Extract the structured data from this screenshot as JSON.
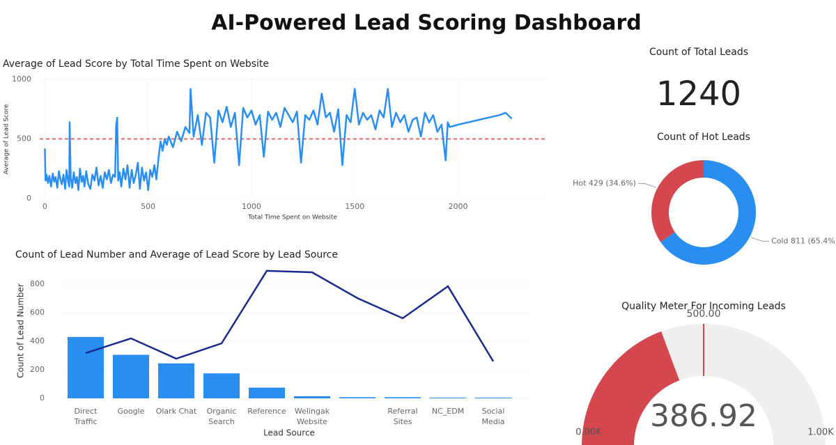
{
  "header": {
    "title": "AI-Powered Lead Scoring Dashboard"
  },
  "chart_data": [
    {
      "type": "line",
      "title": "Average of Lead Score by Total Time Spent on Website",
      "x_label": "Total Time Spent on Website",
      "y_label": "Average of Lead Score",
      "x": [
        0,
        3,
        8,
        15,
        22,
        30,
        38,
        45,
        52,
        60,
        68,
        75,
        82,
        90,
        98,
        105,
        112,
        118,
        120,
        125,
        132,
        140,
        148,
        155,
        162,
        170,
        178,
        185,
        192,
        200,
        210,
        220,
        230,
        240,
        250,
        260,
        270,
        280,
        290,
        300,
        310,
        320,
        330,
        340,
        345,
        350,
        355,
        362,
        370,
        380,
        390,
        400,
        410,
        420,
        430,
        440,
        450,
        460,
        470,
        480,
        490,
        500,
        510,
        520,
        530,
        540,
        550,
        560,
        570,
        580,
        590,
        600,
        620,
        640,
        660,
        680,
        700,
        705,
        720,
        740,
        760,
        780,
        800,
        820,
        840,
        860,
        880,
        900,
        920,
        940,
        960,
        980,
        1000,
        1020,
        1040,
        1060,
        1080,
        1100,
        1120,
        1140,
        1160,
        1180,
        1200,
        1220,
        1240,
        1260,
        1280,
        1300,
        1320,
        1340,
        1360,
        1380,
        1400,
        1420,
        1440,
        1460,
        1480,
        1500,
        1520,
        1540,
        1560,
        1580,
        1600,
        1620,
        1640,
        1660,
        1680,
        1700,
        1720,
        1740,
        1760,
        1780,
        1800,
        1820,
        1840,
        1860,
        1880,
        1900,
        1920,
        1940,
        1950,
        1960,
        2000,
        2050,
        2100,
        2150,
        2200,
        2230,
        2260
      ],
      "series": [
        {
          "name": "Average of Lead Score",
          "color": "#2a8ef0",
          "values": [
            420,
            150,
            200,
            130,
            190,
            100,
            210,
            140,
            180,
            90,
            230,
            160,
            120,
            200,
            80,
            240,
            150,
            100,
            640,
            180,
            90,
            220,
            130,
            180,
            70,
            250,
            140,
            190,
            100,
            230,
            120,
            80,
            200,
            150,
            260,
            110,
            190,
            90,
            220,
            160,
            240,
            130,
            200,
            180,
            610,
            680,
            150,
            220,
            100,
            250,
            160,
            280,
            90,
            240,
            130,
            200,
            300,
            80,
            260,
            150,
            220,
            70,
            240,
            180,
            280,
            160,
            340,
            480,
            400,
            500,
            450,
            520,
            430,
            560,
            480,
            600,
            550,
            920,
            520,
            700,
            450,
            720,
            680,
            300,
            740,
            640,
            770,
            600,
            720,
            280,
            760,
            680,
            740,
            620,
            700,
            350,
            730,
            660,
            720,
            600,
            760,
            700,
            640,
            730,
            300,
            700,
            660,
            740,
            620,
            880,
            680,
            720,
            560,
            750,
            280,
            700,
            640,
            920,
            620,
            720,
            660,
            700,
            580,
            740,
            680,
            920,
            600,
            720,
            640,
            700,
            560,
            660,
            680,
            520,
            720,
            640,
            700,
            560,
            620,
            320,
            640,
            600,
            620,
            640,
            660,
            680,
            700,
            720,
            670
          ]
        }
      ],
      "xlim": [
        -25,
        2430
      ],
      "xticks": [
        0,
        500,
        1000,
        1500,
        2000
      ],
      "ylim": [
        0,
        1000
      ],
      "yticks": [
        0,
        500,
        1000
      ],
      "grid": true,
      "reference_line": {
        "value": 500,
        "color": "#e06666"
      }
    },
    {
      "type": "card",
      "title": "Count of Total Leads",
      "value": 1240
    },
    {
      "type": "donut",
      "title": "Count of Hot Leads",
      "categories": [
        "Cold",
        "Hot"
      ],
      "values": [
        811,
        429
      ],
      "value_labels": [
        "Cold 811 (65.4%)",
        "Hot 429 (34.6%)"
      ],
      "colors": [
        "#2a8ef0",
        "#d4474f"
      ]
    },
    {
      "type": "combo",
      "title": "Count of Lead Number and Average of Lead Score by Lead Source",
      "x_label": "Lead Source",
      "y_label": "Count of Lead Number",
      "categories": [
        "Direct Traffic",
        "Google",
        "Olark Chat",
        "Organic Search",
        "Reference",
        "Welingak Website",
        null,
        "Referral Sites",
        "NC_EDM",
        "Social Media"
      ],
      "series": [
        {
          "name": "Count of Lead Number",
          "type": "bar",
          "color": "#2a8ef0",
          "values": [
            430,
            305,
            245,
            175,
            75,
            15,
            8,
            8,
            5,
            5
          ]
        },
        {
          "name": "Average of Lead Score",
          "type": "line",
          "axis": "y2",
          "color": "#1a2a8c",
          "values": [
            317,
            420,
            278,
            385,
            893,
            883,
            702,
            561,
            785,
            259
          ]
        }
      ],
      "ylim": [
        0,
        900
      ],
      "yticks": [
        0,
        200,
        400,
        600,
        800
      ],
      "y2lim": [
        0,
        900
      ],
      "grid": true
    },
    {
      "type": "gauge",
      "title": "Quality Meter For Incoming Leads",
      "value": 386.92,
      "min": {
        "value": 0,
        "label": "0.00K"
      },
      "max": {
        "value": 1000,
        "label": "1.00K"
      },
      "target": {
        "value": 500,
        "label": "500.00"
      },
      "color": "#d4474f",
      "track_color": "#f0efee"
    }
  ]
}
